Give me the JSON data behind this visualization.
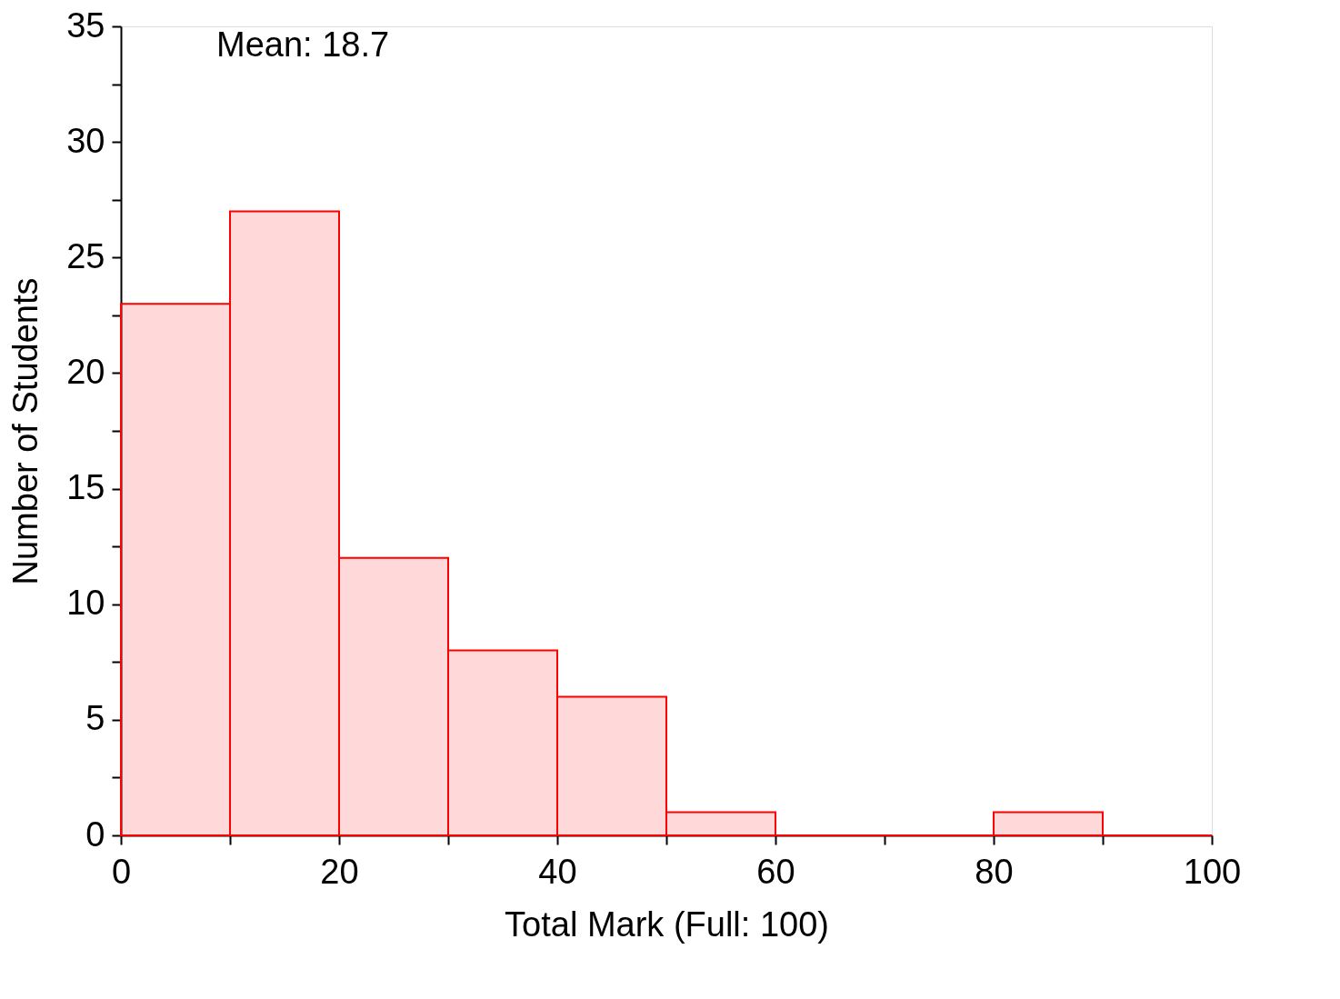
{
  "chart_data": {
    "type": "histogram",
    "xlabel": "Total Mark (Full: 100)",
    "ylabel": "Number of Students",
    "bins": [
      0,
      10,
      20,
      30,
      40,
      50,
      60,
      70,
      80,
      90,
      100
    ],
    "values": [
      23,
      27,
      12,
      8,
      6,
      1,
      0,
      0,
      1,
      0
    ],
    "color": "#ff0000",
    "xlim": [
      0,
      100
    ],
    "ylim": [
      0,
      35
    ],
    "xticks": [
      0,
      {
        "value": 10,
        "label": null
      },
      20,
      {
        "value": 30,
        "label": null
      },
      40,
      {
        "value": 50,
        "label": null
      },
      60,
      {
        "value": 70,
        "label": null
      },
      80,
      {
        "value": 90,
        "label": null
      },
      100
    ],
    "yticks": [
      0,
      {
        "value": 2.5,
        "label": null
      },
      5,
      {
        "value": 7.5,
        "label": null
      },
      10,
      {
        "value": 12.5,
        "label": null
      },
      15,
      {
        "value": 17.5,
        "label": null
      },
      20,
      {
        "value": 22.5,
        "label": null
      },
      25,
      {
        "value": 27.5,
        "label": null
      },
      30,
      {
        "value": 32.5,
        "label": null
      },
      35
    ],
    "annotations": [
      "Mean: 18.7"
    ],
    "grid": false
  }
}
